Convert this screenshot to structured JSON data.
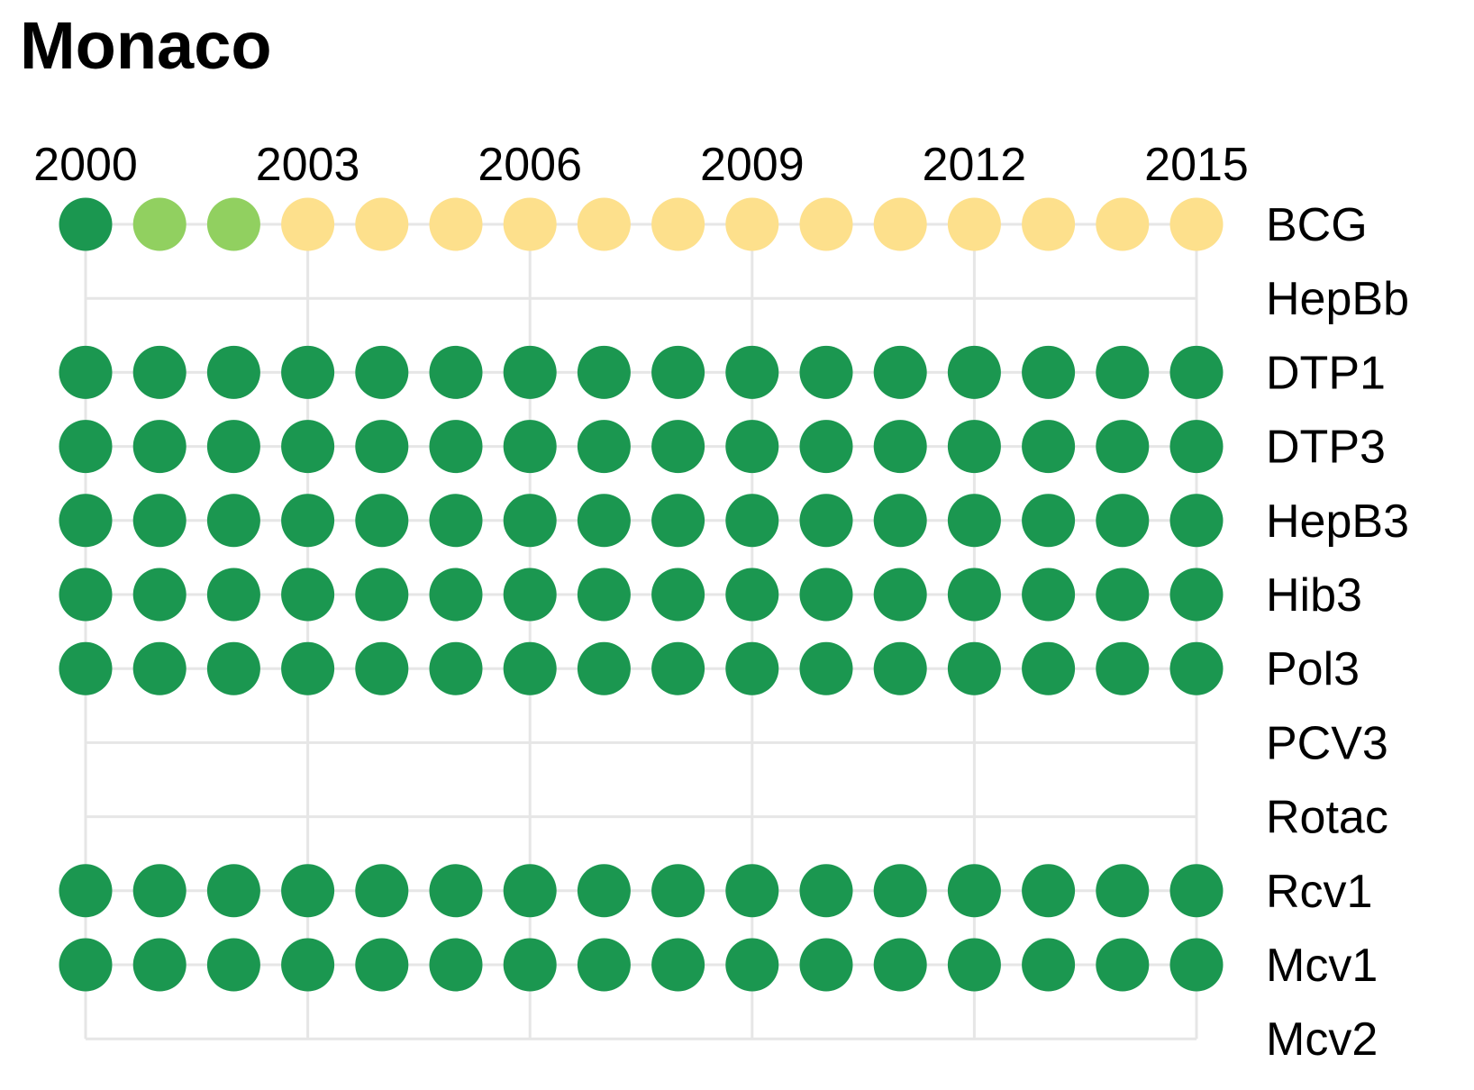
{
  "title": "Monaco",
  "chart_data": {
    "type": "scatter",
    "title": "Monaco",
    "x": [
      2000,
      2001,
      2002,
      2003,
      2004,
      2005,
      2006,
      2007,
      2008,
      2009,
      2010,
      2011,
      2012,
      2013,
      2014,
      2015
    ],
    "x_tick_labels": [
      "2000",
      "2003",
      "2006",
      "2009",
      "2012",
      "2015"
    ],
    "y_categories": [
      "BCG",
      "HepBb",
      "DTP1",
      "DTP3",
      "HepB3",
      "Hib3",
      "Pol3",
      "PCV3",
      "Rotac",
      "Rcv1",
      "Mcv1",
      "Mcv2"
    ],
    "grid": true,
    "colors": {
      "dark_green": "#1b9750",
      "light_green": "#91d060",
      "light_yellow": "#fde08c",
      "grid": "#e6e6e6"
    },
    "series": [
      {
        "vaccine": "BCG",
        "colors": [
          "dark_green",
          "light_green",
          "light_green",
          "light_yellow",
          "light_yellow",
          "light_yellow",
          "light_yellow",
          "light_yellow",
          "light_yellow",
          "light_yellow",
          "light_yellow",
          "light_yellow",
          "light_yellow",
          "light_yellow",
          "light_yellow",
          "light_yellow"
        ]
      },
      {
        "vaccine": "HepBb",
        "colors": [
          null,
          null,
          null,
          null,
          null,
          null,
          null,
          null,
          null,
          null,
          null,
          null,
          null,
          null,
          null,
          null
        ]
      },
      {
        "vaccine": "DTP1",
        "colors": [
          "dark_green",
          "dark_green",
          "dark_green",
          "dark_green",
          "dark_green",
          "dark_green",
          "dark_green",
          "dark_green",
          "dark_green",
          "dark_green",
          "dark_green",
          "dark_green",
          "dark_green",
          "dark_green",
          "dark_green",
          "dark_green"
        ]
      },
      {
        "vaccine": "DTP3",
        "colors": [
          "dark_green",
          "dark_green",
          "dark_green",
          "dark_green",
          "dark_green",
          "dark_green",
          "dark_green",
          "dark_green",
          "dark_green",
          "dark_green",
          "dark_green",
          "dark_green",
          "dark_green",
          "dark_green",
          "dark_green",
          "dark_green"
        ]
      },
      {
        "vaccine": "HepB3",
        "colors": [
          "dark_green",
          "dark_green",
          "dark_green",
          "dark_green",
          "dark_green",
          "dark_green",
          "dark_green",
          "dark_green",
          "dark_green",
          "dark_green",
          "dark_green",
          "dark_green",
          "dark_green",
          "dark_green",
          "dark_green",
          "dark_green"
        ]
      },
      {
        "vaccine": "Hib3",
        "colors": [
          "dark_green",
          "dark_green",
          "dark_green",
          "dark_green",
          "dark_green",
          "dark_green",
          "dark_green",
          "dark_green",
          "dark_green",
          "dark_green",
          "dark_green",
          "dark_green",
          "dark_green",
          "dark_green",
          "dark_green",
          "dark_green"
        ]
      },
      {
        "vaccine": "Pol3",
        "colors": [
          "dark_green",
          "dark_green",
          "dark_green",
          "dark_green",
          "dark_green",
          "dark_green",
          "dark_green",
          "dark_green",
          "dark_green",
          "dark_green",
          "dark_green",
          "dark_green",
          "dark_green",
          "dark_green",
          "dark_green",
          "dark_green"
        ]
      },
      {
        "vaccine": "PCV3",
        "colors": [
          null,
          null,
          null,
          null,
          null,
          null,
          null,
          null,
          null,
          null,
          null,
          null,
          null,
          null,
          null,
          null
        ]
      },
      {
        "vaccine": "Rotac",
        "colors": [
          null,
          null,
          null,
          null,
          null,
          null,
          null,
          null,
          null,
          null,
          null,
          null,
          null,
          null,
          null,
          null
        ]
      },
      {
        "vaccine": "Rcv1",
        "colors": [
          "dark_green",
          "dark_green",
          "dark_green",
          "dark_green",
          "dark_green",
          "dark_green",
          "dark_green",
          "dark_green",
          "dark_green",
          "dark_green",
          "dark_green",
          "dark_green",
          "dark_green",
          "dark_green",
          "dark_green",
          "dark_green"
        ]
      },
      {
        "vaccine": "Mcv1",
        "colors": [
          "dark_green",
          "dark_green",
          "dark_green",
          "dark_green",
          "dark_green",
          "dark_green",
          "dark_green",
          "dark_green",
          "dark_green",
          "dark_green",
          "dark_green",
          "dark_green",
          "dark_green",
          "dark_green",
          "dark_green",
          "dark_green"
        ]
      },
      {
        "vaccine": "Mcv2",
        "colors": [
          null,
          null,
          null,
          null,
          null,
          null,
          null,
          null,
          null,
          null,
          null,
          null,
          null,
          null,
          null,
          null
        ]
      }
    ]
  }
}
